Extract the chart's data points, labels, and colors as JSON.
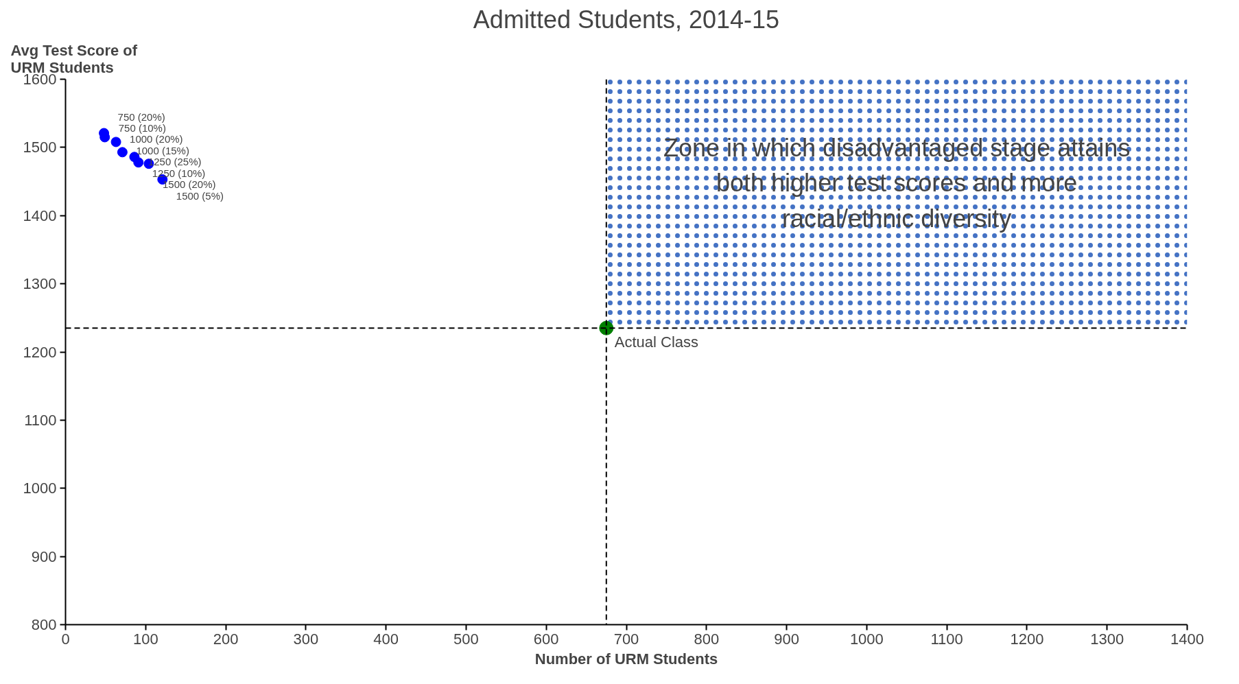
{
  "chart_data": {
    "type": "scatter",
    "title": "Admitted Students, 2014-15",
    "xlabel": "Number of URM Students",
    "ylabel": "Avg Test Score of\nURM Students",
    "series": [
      {
        "color": "#0000ff",
        "x": [
          48,
          49,
          63,
          71,
          86,
          91,
          104,
          121
        ],
        "values": [
          1521,
          1515,
          1508,
          1493,
          1486,
          1478,
          1476,
          1453
        ],
        "value_labels": [
          "750 (20%)",
          "750 (10%)",
          "1000 (20%)",
          "1000 (15%)",
          "1250 (25%)",
          "1250 (10%)",
          "1500 (20%)",
          "1500 (5%)"
        ]
      },
      {
        "color": "#008000",
        "x": [
          675
        ],
        "values": [
          1235
        ],
        "value_labels": [
          "Actual Class"
        ]
      }
    ],
    "ref_lines": [
      {
        "axis": "x",
        "value": 675,
        "line_style": "dashed",
        "color": "#000000"
      },
      {
        "axis": "y",
        "value": 1235,
        "line_style": "dashed",
        "color": "#000000"
      }
    ],
    "bands": [
      {
        "axis": "x",
        "from": 675,
        "to": 1400,
        "color": "#4472c4",
        "label": "Zone in which disadvantaged stage attains\nboth higher test scores and more\nracial/ethnic diversity"
      }
    ],
    "xlim": [
      0,
      1400
    ],
    "ylim": [
      800,
      1600
    ],
    "xticks": [
      0,
      100,
      200,
      300,
      400,
      500,
      600,
      700,
      800,
      900,
      1000,
      1100,
      1200,
      1300,
      1400
    ],
    "yticks": [
      800,
      900,
      1000,
      1100,
      1200,
      1300,
      1400,
      1500,
      1600
    ],
    "grid": false,
    "marker": "circle"
  }
}
